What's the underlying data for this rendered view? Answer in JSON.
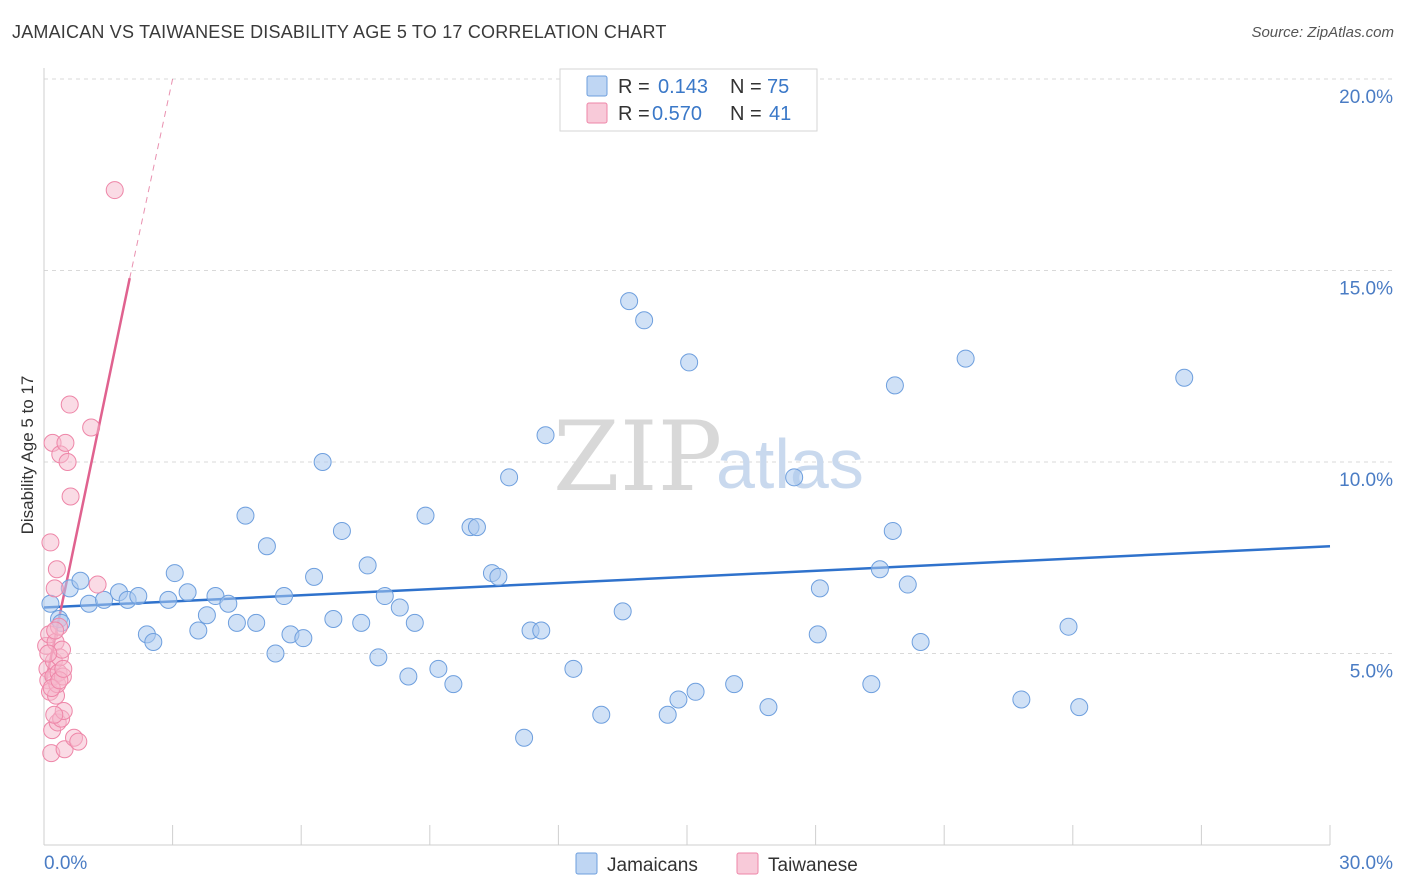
{
  "title": "JAMAICAN VS TAIWANESE DISABILITY AGE 5 TO 17 CORRELATION CHART",
  "source": "Source: ZipAtlas.com",
  "watermark": {
    "zip": "ZIP",
    "atlas": "atlas"
  },
  "colors": {
    "jamaican_fill": "#a9c8ef",
    "jamaican_stroke": "#6e9fde",
    "jamaican_line": "#2f72cc",
    "taiwanese_fill": "#f6b8cc",
    "taiwanese_stroke": "#ee86a8",
    "taiwanese_line": "#e0628f",
    "grid": "#d9d9d9",
    "tick_label": "#4a7cc4"
  },
  "legend": {
    "r_label": "R =",
    "n_label": "N =",
    "jamaican": {
      "r": "0.143",
      "n": "75"
    },
    "taiwanese": {
      "r": "0.570",
      "n": "41"
    }
  },
  "bottom_legend": {
    "jamaicans": "Jamaicans",
    "taiwanese": "Taiwanese"
  },
  "chart_data": {
    "type": "scatter",
    "xlabel": "",
    "ylabel": "Disability Age 5 to 17",
    "xlim": [
      0,
      30
    ],
    "ylim": [
      0,
      20
    ],
    "x_tick_labels": {
      "min": "0.0%",
      "max": "30.0%"
    },
    "y_ticks": [
      {
        "value": 5,
        "label": "5.0%"
      },
      {
        "value": 10,
        "label": "10.0%"
      },
      {
        "value": 15,
        "label": "15.0%"
      },
      {
        "value": 20,
        "label": "20.0%"
      }
    ],
    "series": [
      {
        "name": "Jamaicans",
        "trend": {
          "x0": 0,
          "y0": 6.2,
          "x1": 30,
          "y1": 7.8,
          "dashed_ext": false
        },
        "points": [
          [
            0.35,
            5.9
          ],
          [
            0.6,
            6.7
          ],
          [
            0.85,
            6.9
          ],
          [
            1.05,
            6.3
          ],
          [
            1.4,
            6.4
          ],
          [
            1.75,
            6.6
          ],
          [
            1.95,
            6.4
          ],
          [
            2.2,
            6.5
          ],
          [
            2.4,
            5.5
          ],
          [
            2.55,
            5.3
          ],
          [
            2.9,
            6.4
          ],
          [
            3.05,
            7.1
          ],
          [
            3.35,
            6.6
          ],
          [
            3.6,
            5.6
          ],
          [
            3.8,
            6.0
          ],
          [
            4.0,
            6.5
          ],
          [
            4.3,
            6.3
          ],
          [
            4.5,
            5.8
          ],
          [
            4.7,
            8.6
          ],
          [
            4.95,
            5.8
          ],
          [
            5.2,
            7.8
          ],
          [
            5.4,
            5.0
          ],
          [
            5.6,
            6.5
          ],
          [
            5.75,
            5.5
          ],
          [
            6.05,
            5.4
          ],
          [
            6.3,
            7.0
          ],
          [
            6.5,
            10.0
          ],
          [
            6.75,
            5.9
          ],
          [
            6.95,
            8.2
          ],
          [
            7.4,
            5.8
          ],
          [
            7.55,
            7.3
          ],
          [
            7.8,
            4.9
          ],
          [
            7.95,
            6.5
          ],
          [
            8.3,
            6.2
          ],
          [
            8.5,
            4.4
          ],
          [
            8.65,
            5.8
          ],
          [
            8.9,
            8.6
          ],
          [
            9.2,
            4.6
          ],
          [
            9.55,
            4.2
          ],
          [
            9.95,
            8.3
          ],
          [
            10.1,
            8.3
          ],
          [
            10.45,
            7.1
          ],
          [
            10.6,
            7.0
          ],
          [
            10.85,
            9.6
          ],
          [
            11.2,
            2.8
          ],
          [
            11.35,
            5.6
          ],
          [
            11.6,
            5.6
          ],
          [
            11.7,
            10.7
          ],
          [
            12.35,
            4.6
          ],
          [
            13.0,
            3.4
          ],
          [
            13.5,
            6.1
          ],
          [
            13.65,
            14.2
          ],
          [
            14.0,
            13.7
          ],
          [
            14.55,
            3.4
          ],
          [
            14.8,
            3.8
          ],
          [
            15.05,
            12.6
          ],
          [
            15.2,
            4.0
          ],
          [
            16.1,
            4.2
          ],
          [
            16.9,
            3.6
          ],
          [
            17.5,
            9.6
          ],
          [
            18.1,
            6.7
          ],
          [
            18.05,
            5.5
          ],
          [
            19.3,
            4.2
          ],
          [
            19.5,
            7.2
          ],
          [
            19.8,
            8.2
          ],
          [
            19.85,
            12.0
          ],
          [
            20.15,
            6.8
          ],
          [
            20.45,
            5.3
          ],
          [
            21.5,
            12.7
          ],
          [
            22.8,
            3.8
          ],
          [
            23.9,
            5.7
          ],
          [
            24.15,
            3.6
          ],
          [
            26.6,
            12.2
          ],
          [
            0.4,
            5.8
          ],
          [
            0.15,
            6.3
          ]
        ]
      },
      {
        "name": "Taiwanese",
        "trend": {
          "x0": 0.05,
          "y0": 4.3,
          "x1": 2.0,
          "y1": 14.8,
          "ext_x1": 3.0,
          "ext_y1": 20.0
        },
        "points": [
          [
            0.05,
            5.2
          ],
          [
            0.08,
            4.6
          ],
          [
            0.1,
            4.3
          ],
          [
            0.12,
            5.5
          ],
          [
            0.14,
            4.0
          ],
          [
            0.15,
            7.9
          ],
          [
            0.17,
            2.4
          ],
          [
            0.19,
            3.0
          ],
          [
            0.2,
            10.5
          ],
          [
            0.22,
            4.4
          ],
          [
            0.23,
            4.8
          ],
          [
            0.25,
            6.7
          ],
          [
            0.27,
            5.3
          ],
          [
            0.28,
            3.9
          ],
          [
            0.3,
            7.2
          ],
          [
            0.31,
            4.2
          ],
          [
            0.32,
            3.2
          ],
          [
            0.34,
            4.5
          ],
          [
            0.35,
            5.7
          ],
          [
            0.37,
            4.9
          ],
          [
            0.38,
            10.2
          ],
          [
            0.4,
            3.3
          ],
          [
            0.42,
            5.1
          ],
          [
            0.44,
            4.4
          ],
          [
            0.46,
            3.5
          ],
          [
            0.48,
            2.5
          ],
          [
            0.5,
            10.5
          ],
          [
            0.55,
            10.0
          ],
          [
            0.6,
            11.5
          ],
          [
            0.62,
            9.1
          ],
          [
            0.7,
            2.8
          ],
          [
            0.8,
            2.7
          ],
          [
            1.1,
            10.9
          ],
          [
            1.25,
            6.8
          ],
          [
            1.65,
            17.1
          ],
          [
            0.1,
            5.0
          ],
          [
            0.18,
            4.1
          ],
          [
            0.26,
            5.6
          ],
          [
            0.36,
            4.3
          ],
          [
            0.24,
            3.4
          ],
          [
            0.45,
            4.6
          ]
        ]
      }
    ]
  }
}
